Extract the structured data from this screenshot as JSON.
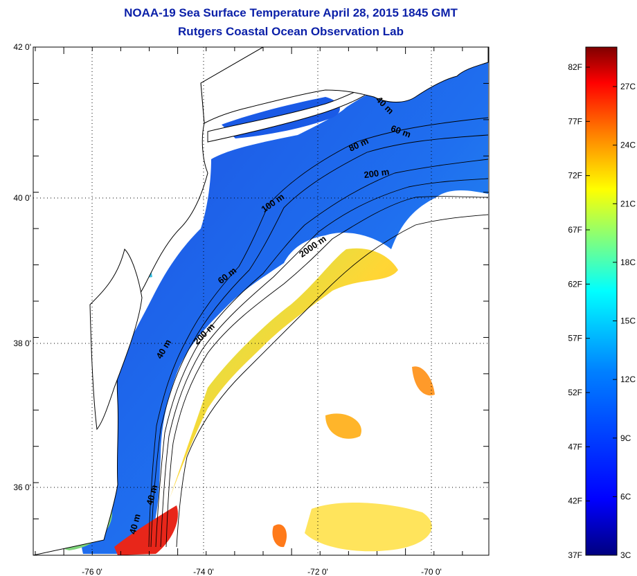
{
  "header": {
    "title": "NOAA-19 Sea Surface Temperature April 28, 2015 1845 GMT",
    "subtitle": "Rutgers Coastal Ocean Observation Lab"
  },
  "map": {
    "lon_labels": [
      "-76 0'",
      "-74 0'",
      "-72 0'",
      "-70 0'"
    ],
    "lat_labels": [
      "42 0'",
      "40 0'",
      "38 0'",
      "36 0'"
    ],
    "lon_range": [
      -77,
      -69
    ],
    "lat_range": [
      35,
      42
    ],
    "isobaths": [
      {
        "label": "40 m",
        "lon": -70.9,
        "lat": 40.95,
        "angle": 45
      },
      {
        "label": "60 m",
        "lon": -70.6,
        "lat": 40.58,
        "angle": 20
      },
      {
        "label": "80 m",
        "lon": -71.3,
        "lat": 40.4,
        "angle": -25
      },
      {
        "label": "200 m",
        "lon": -71.0,
        "lat": 40.0,
        "angle": -8
      },
      {
        "label": "100 m",
        "lon": -72.8,
        "lat": 39.6,
        "angle": -35
      },
      {
        "label": "2000 m",
        "lon": -72.1,
        "lat": 39.0,
        "angle": -35
      },
      {
        "label": "60 m",
        "lon": -73.6,
        "lat": 38.6,
        "angle": -38
      },
      {
        "label": "200 m",
        "lon": -74.0,
        "lat": 37.8,
        "angle": -45
      },
      {
        "label": "40 m",
        "lon": -74.7,
        "lat": 37.6,
        "angle": -60
      },
      {
        "label": "40 m",
        "lon": -74.9,
        "lat": 35.6,
        "angle": -75
      },
      {
        "label": "40 m",
        "lon": -75.2,
        "lat": 35.2,
        "angle": -75
      }
    ]
  },
  "colorbar": {
    "f_labels": [
      "82F",
      "77F",
      "72F",
      "67F",
      "62F",
      "57F",
      "52F",
      "47F",
      "42F",
      "37F"
    ],
    "c_labels": [
      "27C",
      "24C",
      "21C",
      "18C",
      "15C",
      "12C",
      "9C",
      "6C",
      "3C"
    ],
    "colors": [
      "#00007f",
      "#0000ff",
      "#007fff",
      "#00ffff",
      "#7fff7f",
      "#ffff00",
      "#ff7f00",
      "#ff0000",
      "#7f0000"
    ]
  }
}
